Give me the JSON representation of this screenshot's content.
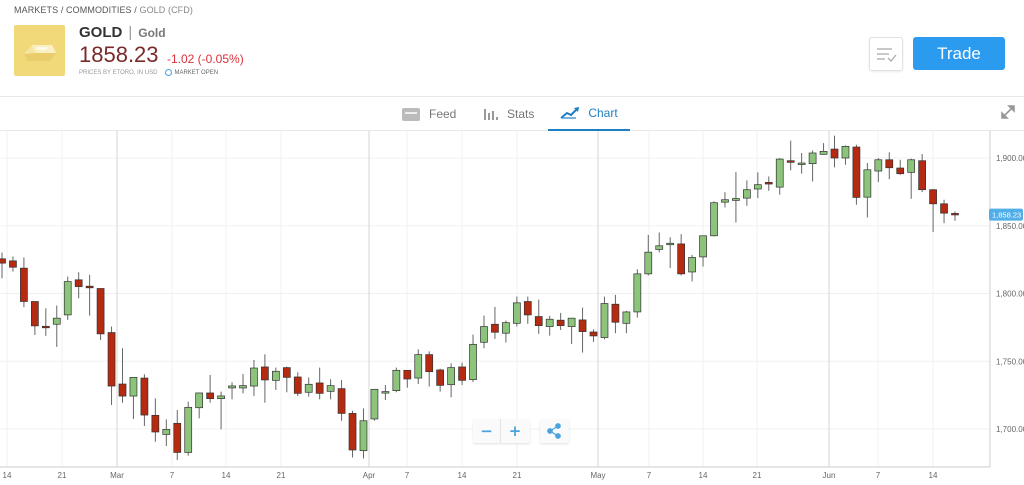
{
  "breadcrumb": [
    {
      "label": "MARKETS"
    },
    {
      "label": "COMMODITIES"
    },
    {
      "label": "GOLD (CFD)"
    }
  ],
  "breadcrumb_sep": "/",
  "instrument": {
    "symbol": "GOLD",
    "name": "Gold",
    "price": "1858.23",
    "change": "-1.02 (-0.05%)",
    "source": "PRICES BY ETORO, IN USD",
    "status": "MARKET OPEN",
    "icon": "gold-bar-icon"
  },
  "actions": {
    "watchlist_icon": "watchlist-icon",
    "trade_label": "Trade"
  },
  "tabs": [
    {
      "label": "Feed",
      "icon": "feed-icon"
    },
    {
      "label": "Stats",
      "icon": "stats-icon"
    },
    {
      "label": "Chart",
      "icon": "chart-icon",
      "active": true
    }
  ],
  "colors": {
    "accent": "#2b9bf0",
    "up": "#8bc47a",
    "down": "#b52a10",
    "price_red": "#7b2a2a",
    "change_red": "#d9323b",
    "tab_active": "#1f7fc2"
  },
  "chart_data": {
    "type": "candlestick",
    "instrument": "GOLD",
    "ylim": [
      1670,
      1925
    ],
    "yticks": [
      "1,700.00",
      "1,750.00",
      "1,800.00",
      "1,850.00",
      "1,900.00"
    ],
    "ytick_values": [
      1700,
      1750,
      1800,
      1850,
      1900
    ],
    "xticks": [
      "14",
      "21",
      "Mar",
      "7",
      "14",
      "21",
      "Apr",
      "7",
      "14",
      "21",
      "May",
      "7",
      "14",
      "21",
      "Jun",
      "7",
      "14"
    ],
    "last_price_label": "1,858.23",
    "last_price": 1858.23,
    "grid": true,
    "candles_ohlc": [
      [
        1825.6,
        1830.3,
        1811.3,
        1822.4
      ],
      [
        1824.1,
        1827.3,
        1816.2,
        1819.4
      ],
      [
        1818.7,
        1826.6,
        1789.9,
        1794.1
      ],
      [
        1794.1,
        1794.1,
        1769.4,
        1776.1
      ],
      [
        1775.8,
        1789.1,
        1768.7,
        1775.1
      ],
      [
        1777.3,
        1791.1,
        1760.6,
        1781.8
      ],
      [
        1784.2,
        1812.5,
        1780.5,
        1808.8
      ],
      [
        1810.1,
        1815.7,
        1796.5,
        1805.1
      ],
      [
        1805.4,
        1813.8,
        1783.7,
        1804.2
      ],
      [
        1803.7,
        1803.7,
        1765.7,
        1770.2
      ],
      [
        1771.2,
        1775.6,
        1717.7,
        1731.7
      ],
      [
        1733.2,
        1759.6,
        1719.4,
        1724.3
      ],
      [
        1724.3,
        1738.1,
        1707.4,
        1738.1
      ],
      [
        1737.6,
        1740.4,
        1702.2,
        1710.3
      ],
      [
        1710.1,
        1722.6,
        1690.6,
        1697.8
      ],
      [
        1696.0,
        1707.1,
        1687.4,
        1699.7
      ],
      [
        1704.2,
        1714.0,
        1677.1,
        1682.7
      ],
      [
        1682.7,
        1720.2,
        1680.3,
        1716.0
      ],
      [
        1715.7,
        1726.6,
        1707.9,
        1726.6
      ],
      [
        1726.6,
        1739.9,
        1719.4,
        1722.4
      ],
      [
        1722.4,
        1727.6,
        1699.7,
        1724.4
      ],
      [
        1730.3,
        1734.5,
        1721.9,
        1731.8
      ],
      [
        1730.3,
        1740.6,
        1726.3,
        1732.0
      ],
      [
        1731.7,
        1751.0,
        1724.3,
        1745.0
      ],
      [
        1745.8,
        1755.1,
        1719.4,
        1736.2
      ],
      [
        1735.9,
        1745.3,
        1728.8,
        1742.6
      ],
      [
        1745.3,
        1746.0,
        1727.1,
        1738.1
      ],
      [
        1738.4,
        1741.8,
        1724.3,
        1726.3
      ],
      [
        1727.1,
        1738.1,
        1723.9,
        1733.0
      ],
      [
        1734.0,
        1745.3,
        1721.9,
        1726.3
      ],
      [
        1727.8,
        1736.7,
        1721.9,
        1732.0
      ],
      [
        1729.8,
        1736.2,
        1706.1,
        1711.5
      ],
      [
        1711.5,
        1713.5,
        1679.0,
        1684.5
      ],
      [
        1684.0,
        1715.2,
        1678.3,
        1706.1
      ],
      [
        1707.4,
        1729.3,
        1706.1,
        1729.3
      ],
      [
        1727.0,
        1732.5,
        1721.4,
        1727.6
      ],
      [
        1728.3,
        1745.3,
        1727.1,
        1743.3
      ],
      [
        1743.3,
        1743.3,
        1730.5,
        1736.9
      ],
      [
        1737.6,
        1758.8,
        1733.2,
        1754.9
      ],
      [
        1754.9,
        1757.3,
        1731.3,
        1742.3
      ],
      [
        1743.6,
        1744.5,
        1727.6,
        1732.2
      ],
      [
        1732.7,
        1748.5,
        1723.4,
        1745.3
      ],
      [
        1745.8,
        1749.0,
        1732.5,
        1735.9
      ],
      [
        1736.4,
        1769.7,
        1734.7,
        1762.5
      ],
      [
        1764.0,
        1783.7,
        1759.6,
        1775.6
      ],
      [
        1777.3,
        1790.1,
        1766.5,
        1771.4
      ],
      [
        1770.7,
        1780.0,
        1763.8,
        1778.5
      ],
      [
        1778.0,
        1797.7,
        1775.6,
        1793.1
      ],
      [
        1794.1,
        1797.7,
        1777.6,
        1784.2
      ],
      [
        1783.0,
        1795.5,
        1770.2,
        1776.3
      ],
      [
        1775.6,
        1783.5,
        1768.9,
        1781.0
      ],
      [
        1780.3,
        1785.7,
        1773.1,
        1776.3
      ],
      [
        1775.6,
        1781.8,
        1762.8,
        1781.8
      ],
      [
        1780.5,
        1789.6,
        1756.4,
        1771.9
      ],
      [
        1771.6,
        1773.6,
        1764.3,
        1768.7
      ],
      [
        1767.5,
        1797.7,
        1766.2,
        1792.6
      ],
      [
        1792.1,
        1799.0,
        1770.7,
        1778.8
      ],
      [
        1778.0,
        1787.2,
        1770.7,
        1786.4
      ],
      [
        1786.4,
        1817.9,
        1782.2,
        1814.5
      ],
      [
        1814.5,
        1843.3,
        1813.3,
        1830.5
      ],
      [
        1832.5,
        1845.0,
        1830.3,
        1835.2
      ],
      [
        1836.0,
        1841.5,
        1818.8,
        1837.1
      ],
      [
        1836.6,
        1843.8,
        1813.3,
        1814.5
      ],
      [
        1815.9,
        1828.5,
        1808.9,
        1826.6
      ],
      [
        1827.0,
        1842.6,
        1819.9,
        1842.6
      ],
      [
        1842.6,
        1868.0,
        1842.1,
        1867.0
      ],
      [
        1867.4,
        1874.8,
        1863.5,
        1869.2
      ],
      [
        1868.7,
        1889.6,
        1852.4,
        1870.1
      ],
      [
        1870.4,
        1883.5,
        1864.7,
        1876.6
      ],
      [
        1877.1,
        1889.4,
        1870.4,
        1880.3
      ],
      [
        1882.0,
        1886.4,
        1875.8,
        1880.8
      ],
      [
        1878.5,
        1900.0,
        1872.9,
        1899.2
      ],
      [
        1898.0,
        1912.8,
        1890.9,
        1896.8
      ],
      [
        1895.3,
        1903.7,
        1888.4,
        1896.3
      ],
      [
        1895.8,
        1905.6,
        1882.7,
        1903.7
      ],
      [
        1902.7,
        1911.0,
        1902.4,
        1904.9
      ],
      [
        1906.6,
        1916.5,
        1893.1,
        1900.0
      ],
      [
        1900.0,
        1909.3,
        1895.0,
        1908.6
      ],
      [
        1908.1,
        1909.8,
        1865.5,
        1870.9
      ],
      [
        1871.1,
        1896.3,
        1856.1,
        1891.3
      ],
      [
        1890.4,
        1900.0,
        1882.2,
        1898.7
      ],
      [
        1898.7,
        1904.2,
        1884.4,
        1892.8
      ],
      [
        1892.6,
        1898.7,
        1887.6,
        1888.4
      ],
      [
        1889.4,
        1899.5,
        1869.9,
        1898.7
      ],
      [
        1898.0,
        1902.9,
        1874.8,
        1876.6
      ],
      [
        1876.6,
        1877.1,
        1845.3,
        1866.2
      ],
      [
        1866.2,
        1869.2,
        1851.9,
        1859.3
      ],
      [
        1859.1,
        1860.6,
        1853.7,
        1858.2
      ]
    ]
  },
  "chart_controls": {
    "zoom_out": "−",
    "zoom_in": "+",
    "share_icon": "share-icon",
    "expand_icon": "expand-icon"
  }
}
